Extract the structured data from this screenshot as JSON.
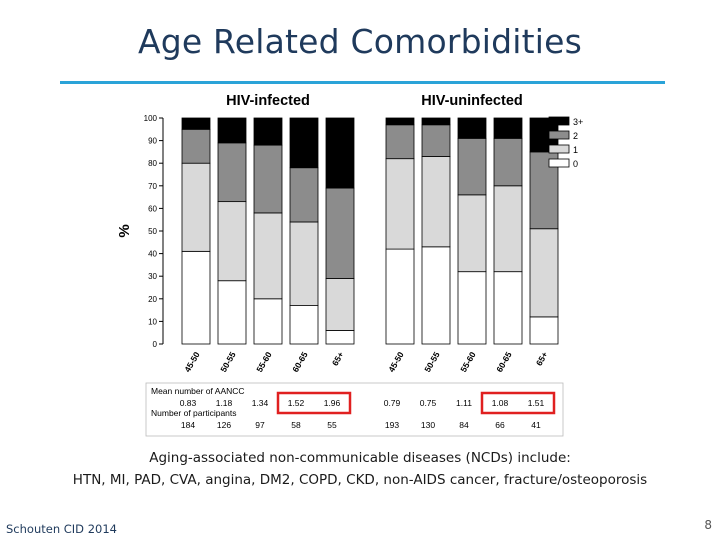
{
  "slide": {
    "title": "Age Related Comorbidities",
    "caption_line1": "Aging-associated non-communicable diseases (NCDs) include:",
    "caption_line2": "HTN, MI, PAD, CVA, angina, DM2, COPD, CKD, non-AIDS cancer, fracture/osteoporosis",
    "footer": "Schouten CID 2014",
    "page_number": "8"
  },
  "colors": {
    "title": "#1f3a5c",
    "rule": "#2aa3d8",
    "highlight_box": "#e02020",
    "cat_0": "#ffffff",
    "cat_1": "#d9d9d9",
    "cat_2": "#8c8c8c",
    "cat_3plus": "#000000"
  },
  "chart_data": {
    "type": "bar",
    "stacked": true,
    "ylabel": "%",
    "ylim": [
      0,
      100
    ],
    "yticks": [
      "0",
      "10",
      "20",
      "30",
      "40",
      "50",
      "60",
      "70",
      "80",
      "90",
      "100"
    ],
    "legend": [
      "3+",
      "2",
      "1",
      "0"
    ],
    "legend_placement": "right",
    "groups": [
      {
        "label": "HIV-infected",
        "categories": [
          "45-50",
          "50-55",
          "55-60",
          "60-65",
          "65+"
        ],
        "series": [
          {
            "name": "0",
            "values": [
              41,
              28,
              20,
              17,
              6
            ]
          },
          {
            "name": "1",
            "values": [
              39,
              35,
              38,
              37,
              23
            ]
          },
          {
            "name": "2",
            "values": [
              15,
              26,
              30,
              24,
              40
            ]
          },
          {
            "name": "3+",
            "values": [
              5,
              11,
              12,
              22,
              31
            ]
          }
        ]
      },
      {
        "label": "HIV-uninfected",
        "categories": [
          "45-50",
          "50-55",
          "55-60",
          "60-65",
          "65+"
        ],
        "series": [
          {
            "name": "0",
            "values": [
              42,
              43,
              32,
              32,
              12
            ]
          },
          {
            "name": "1",
            "values": [
              40,
              40,
              34,
              38,
              39
            ]
          },
          {
            "name": "2",
            "values": [
              15,
              14,
              25,
              21,
              34
            ]
          },
          {
            "name": "3+",
            "values": [
              3,
              3,
              9,
              9,
              15
            ]
          }
        ]
      }
    ],
    "table": {
      "row1_label": "Mean number of AANCC",
      "row1_values": [
        "0.83",
        "1.18",
        "1.34",
        "1.52",
        "1.96",
        "0.79",
        "0.75",
        "1.11",
        "1.08",
        "1.51"
      ],
      "row2_label": "Number of participants",
      "row2_values": [
        "184",
        "126",
        "97",
        "58",
        "55",
        "193",
        "130",
        "84",
        "66",
        "41"
      ]
    }
  }
}
